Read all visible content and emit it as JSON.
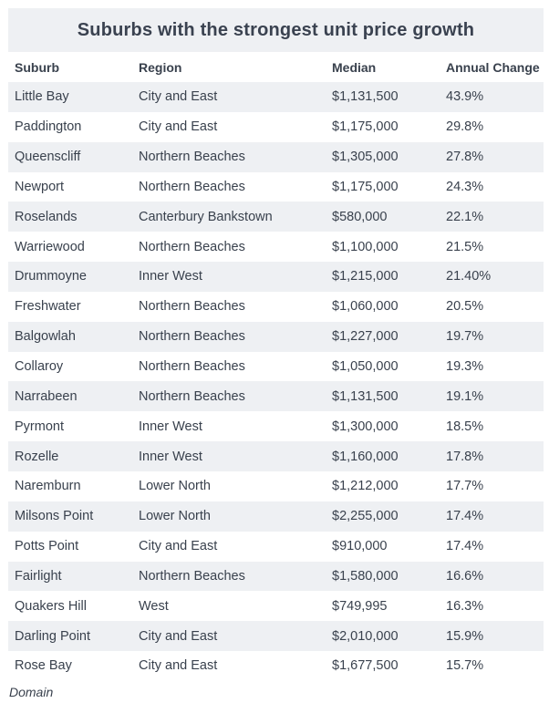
{
  "title": "Suburbs with the strongest unit price growth",
  "source": "Domain",
  "chart_data": {
    "type": "table",
    "title": "Suburbs with the strongest unit price growth",
    "columns": [
      "Suburb",
      "Region",
      "Median",
      "Annual Change"
    ],
    "rows": [
      [
        "Little Bay",
        "City and East",
        "$1,131,500",
        "43.9%"
      ],
      [
        "Paddington",
        "City and East",
        "$1,175,000",
        "29.8%"
      ],
      [
        "Queenscliff",
        "Northern Beaches",
        "$1,305,000",
        "27.8%"
      ],
      [
        "Newport",
        "Northern Beaches",
        "$1,175,000",
        "24.3%"
      ],
      [
        "Roselands",
        "Canterbury Bankstown",
        "$580,000",
        "22.1%"
      ],
      [
        "Warriewood",
        "Northern Beaches",
        "$1,100,000",
        "21.5%"
      ],
      [
        "Drummoyne",
        "Inner West",
        "$1,215,000",
        "21.40%"
      ],
      [
        "Freshwater",
        "Northern Beaches",
        "$1,060,000",
        "20.5%"
      ],
      [
        "Balgowlah",
        "Northern Beaches",
        "$1,227,000",
        "19.7%"
      ],
      [
        "Collaroy",
        "Northern Beaches",
        "$1,050,000",
        "19.3%"
      ],
      [
        "Narrabeen",
        "Northern Beaches",
        "$1,131,500",
        "19.1%"
      ],
      [
        "Pyrmont",
        "Inner West",
        "$1,300,000",
        "18.5%"
      ],
      [
        "Rozelle",
        "Inner West",
        "$1,160,000",
        "17.8%"
      ],
      [
        "Naremburn",
        "Lower North",
        "$1,212,000",
        "17.7%"
      ],
      [
        "Milsons Point",
        "Lower North",
        "$2,255,000",
        "17.4%"
      ],
      [
        "Potts Point",
        "City and East",
        "$910,000",
        "17.4%"
      ],
      [
        "Fairlight",
        "Northern Beaches",
        "$1,580,000",
        "16.6%"
      ],
      [
        "Quakers Hill",
        "West",
        "$749,995",
        "16.3%"
      ],
      [
        "Darling Point",
        "City and East",
        "$2,010,000",
        "15.9%"
      ],
      [
        "Rose Bay",
        "City and East",
        "$1,677,500",
        "15.7%"
      ]
    ]
  }
}
